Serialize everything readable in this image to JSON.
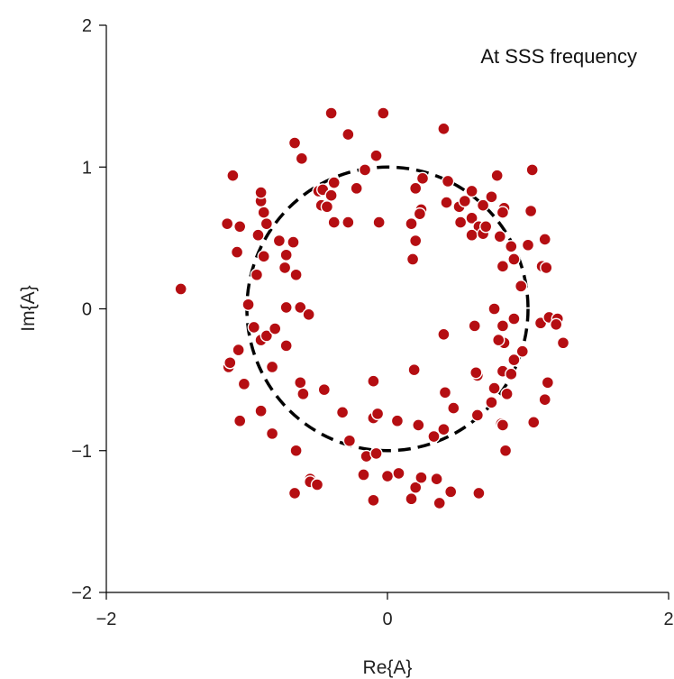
{
  "chart_data": {
    "type": "scatter",
    "title": "",
    "annotation": "At SSS frequency",
    "xlabel": "Re{A}",
    "ylabel": "Im{A}",
    "xlim": [
      -2,
      2
    ],
    "ylim": [
      -2,
      2
    ],
    "x_ticks": [
      -2,
      0,
      2
    ],
    "y_ticks": [
      -2,
      -1,
      0,
      1,
      2
    ],
    "grid": false,
    "legend": "none",
    "colors": {
      "points": "#b50e12",
      "point_edge": "#ffffff",
      "circle": "#000000",
      "axis": "#000000"
    },
    "reference_circle": {
      "type": "dashed-circle",
      "center": [
        0,
        0
      ],
      "radius": 1
    },
    "points": [
      [
        -1.47,
        0.14
      ],
      [
        -1.14,
        0.6
      ],
      [
        -1.1,
        0.94
      ],
      [
        -1.05,
        0.58
      ],
      [
        -1.07,
        0.4
      ],
      [
        -1.13,
        -0.41
      ],
      [
        -1.12,
        -0.38
      ],
      [
        -1.06,
        -0.29
      ],
      [
        -1.02,
        -0.53
      ],
      [
        -1.05,
        -0.79
      ],
      [
        -0.9,
        -0.72
      ],
      [
        -0.82,
        -0.88
      ],
      [
        -0.99,
        0.03
      ],
      [
        -0.95,
        -0.13
      ],
      [
        -0.9,
        -0.22
      ],
      [
        -0.86,
        -0.19
      ],
      [
        -0.8,
        -0.14
      ],
      [
        -0.82,
        -0.41
      ],
      [
        -0.72,
        -0.26
      ],
      [
        -0.72,
        0.01
      ],
      [
        -0.65,
        0.24
      ],
      [
        -0.62,
        0.01
      ],
      [
        -0.72,
        0.38
      ],
      [
        -0.77,
        0.48
      ],
      [
        -0.67,
        0.47
      ],
      [
        -0.73,
        0.29
      ],
      [
        -0.93,
        0.24
      ],
      [
        -0.88,
        0.37
      ],
      [
        -0.92,
        0.52
      ],
      [
        -0.86,
        0.6
      ],
      [
        -0.88,
        0.68
      ],
      [
        -0.9,
        0.76
      ],
      [
        -0.9,
        0.82
      ],
      [
        -0.66,
        1.17
      ],
      [
        -0.61,
        1.06
      ],
      [
        -0.4,
        1.38
      ],
      [
        -0.28,
        1.23
      ],
      [
        -0.03,
        1.38
      ],
      [
        0.4,
        1.27
      ],
      [
        -0.16,
        0.98
      ],
      [
        -0.08,
        1.08
      ],
      [
        -0.49,
        0.83
      ],
      [
        -0.46,
        0.84
      ],
      [
        -0.4,
        0.8
      ],
      [
        -0.38,
        0.89
      ],
      [
        -0.47,
        0.73
      ],
      [
        -0.43,
        0.72
      ],
      [
        -0.22,
        0.85
      ],
      [
        -0.28,
        0.61
      ],
      [
        -0.38,
        0.61
      ],
      [
        -0.06,
        0.61
      ],
      [
        0.2,
        0.85
      ],
      [
        0.25,
        0.92
      ],
      [
        0.43,
        0.9
      ],
      [
        0.42,
        0.75
      ],
      [
        0.51,
        0.72
      ],
      [
        0.52,
        0.61
      ],
      [
        0.6,
        0.64
      ],
      [
        0.65,
        0.58
      ],
      [
        0.6,
        0.52
      ],
      [
        0.68,
        0.53
      ],
      [
        0.55,
        0.76
      ],
      [
        0.6,
        0.83
      ],
      [
        0.68,
        0.73
      ],
      [
        0.74,
        0.79
      ],
      [
        0.78,
        0.94
      ],
      [
        0.83,
        0.71
      ],
      [
        0.82,
        0.68
      ],
      [
        0.8,
        0.51
      ],
      [
        0.88,
        0.44
      ],
      [
        0.9,
        0.35
      ],
      [
        0.82,
        0.3
      ],
      [
        0.95,
        0.16
      ],
      [
        1.03,
        0.98
      ],
      [
        1.02,
        0.69
      ],
      [
        1.1,
        0.3
      ],
      [
        1.13,
        0.29
      ],
      [
        1.12,
        0.49
      ],
      [
        1.0,
        0.45
      ],
      [
        0.24,
        0.7
      ],
      [
        0.23,
        0.67
      ],
      [
        0.17,
        0.6
      ],
      [
        0.2,
        0.48
      ],
      [
        0.18,
        0.35
      ],
      [
        0.7,
        0.58
      ],
      [
        -0.56,
        -0.04
      ],
      [
        -0.62,
        -0.52
      ],
      [
        -0.6,
        -0.6
      ],
      [
        -0.45,
        -0.57
      ],
      [
        -0.32,
        -0.73
      ],
      [
        -0.27,
        -0.93
      ],
      [
        -0.65,
        -1.0
      ],
      [
        -0.66,
        -1.3
      ],
      [
        -0.55,
        -1.2
      ],
      [
        -0.55,
        -1.22
      ],
      [
        -0.5,
        -1.24
      ],
      [
        -0.17,
        -1.17
      ],
      [
        -0.1,
        -1.35
      ],
      [
        0.0,
        -1.18
      ],
      [
        0.08,
        -1.16
      ],
      [
        0.17,
        -1.34
      ],
      [
        0.2,
        -1.26
      ],
      [
        0.24,
        -1.19
      ],
      [
        0.35,
        -1.2
      ],
      [
        0.37,
        -1.37
      ],
      [
        0.45,
        -1.29
      ],
      [
        0.65,
        -1.3
      ],
      [
        -0.15,
        -1.04
      ],
      [
        -0.08,
        -1.02
      ],
      [
        -0.1,
        -0.77
      ],
      [
        -0.07,
        -0.74
      ],
      [
        0.07,
        -0.79
      ],
      [
        0.22,
        -0.82
      ],
      [
        0.33,
        -0.9
      ],
      [
        0.4,
        -0.85
      ],
      [
        0.41,
        -0.59
      ],
      [
        0.47,
        -0.7
      ],
      [
        0.64,
        -0.75
      ],
      [
        0.64,
        -0.47
      ],
      [
        0.63,
        -0.45
      ],
      [
        0.74,
        -0.66
      ],
      [
        0.76,
        -0.56
      ],
      [
        0.81,
        -0.81
      ],
      [
        0.82,
        -0.82
      ],
      [
        0.82,
        -0.44
      ],
      [
        0.85,
        -0.6
      ],
      [
        0.88,
        -0.46
      ],
      [
        0.9,
        -0.36
      ],
      [
        0.83,
        -0.24
      ],
      [
        0.79,
        -0.22
      ],
      [
        0.82,
        -0.12
      ],
      [
        0.76,
        0.0
      ],
      [
        0.9,
        -0.07
      ],
      [
        0.96,
        -0.3
      ],
      [
        0.62,
        -0.12
      ],
      [
        0.4,
        -0.18
      ],
      [
        0.19,
        -0.43
      ],
      [
        -0.1,
        -0.51
      ],
      [
        0.84,
        -1.0
      ],
      [
        1.04,
        -0.8
      ],
      [
        1.12,
        -0.64
      ],
      [
        1.14,
        -0.52
      ],
      [
        1.09,
        -0.1
      ],
      [
        1.15,
        -0.06
      ],
      [
        1.21,
        -0.07
      ],
      [
        1.2,
        -0.11
      ],
      [
        1.25,
        -0.24
      ]
    ]
  }
}
